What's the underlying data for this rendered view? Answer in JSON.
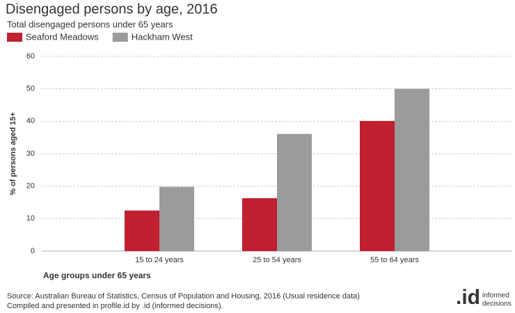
{
  "chart_data": {
    "type": "bar",
    "title": "Disengaged persons by age, 2016",
    "subtitle": "Total disengaged persons under 65 years",
    "x_label": "Age groups under 65 years",
    "y_label": "% of persons aged 15+",
    "categories": [
      "15 to 24 years",
      "25 to 54 years",
      "55 to 64 years"
    ],
    "series": [
      {
        "name": "Seaford Meadows",
        "color": "#c0202f",
        "values": [
          12.5,
          16.3,
          40.1
        ]
      },
      {
        "name": "Hackham West",
        "color": "#9b9b9b",
        "values": [
          19.8,
          36.1,
          50.0
        ]
      }
    ],
    "ylim": [
      0,
      60
    ],
    "yticks": [
      0,
      10,
      20,
      30,
      40,
      50,
      60
    ],
    "grid": true,
    "source": [
      "Source: Australian Bureau of Statistics, Census of Population and Housing, 2016 (Usual residence data)",
      "Compiled and presented in profile.id by .id (informed decisions)."
    ],
    "logo": {
      "mark": ".id",
      "words": [
        "informed",
        "decisions"
      ]
    }
  }
}
